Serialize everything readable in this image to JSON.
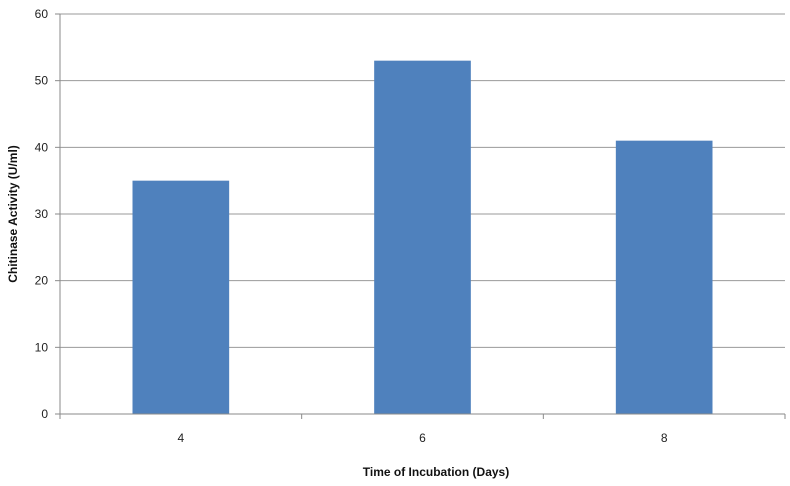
{
  "chart_data": {
    "type": "bar",
    "title": "",
    "categories": [
      "4",
      "6",
      "8"
    ],
    "values": [
      35,
      53,
      41
    ],
    "xlabel": "Time of Incubation (Days)",
    "ylabel": "Chitinase Activity (U/ml)",
    "ylim": [
      0,
      60
    ],
    "yticks": [
      0,
      10,
      20,
      30,
      40,
      50,
      60
    ],
    "grid": true,
    "legend": "none",
    "colors": {
      "bar": "#4f81bd",
      "grid": "#9a9a9a",
      "axis": "#8a8a8a"
    }
  }
}
